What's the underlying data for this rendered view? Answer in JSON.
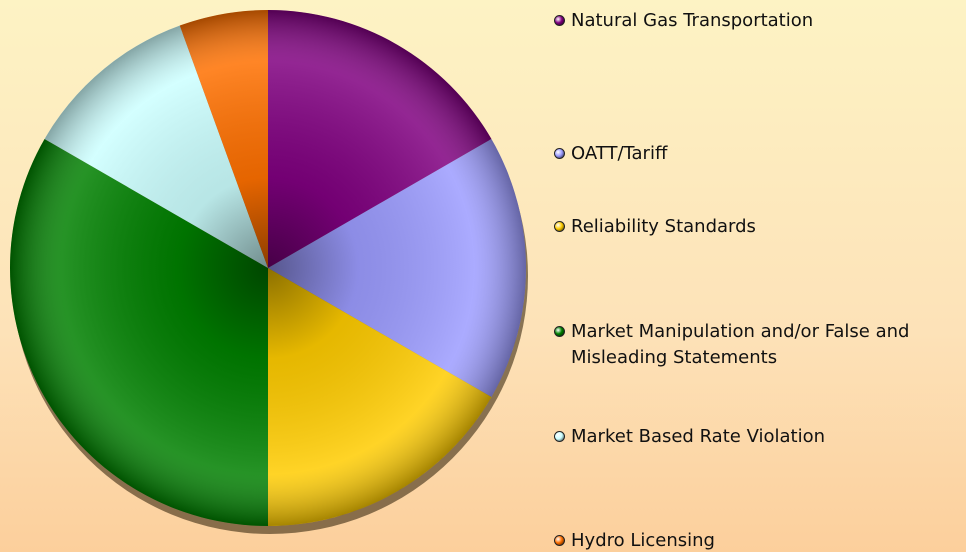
{
  "chart_data": {
    "type": "pie",
    "categories": [
      "Natural Gas Transportation",
      "OATT/Tariff",
      "Reliability Standards",
      "Market Manipulation and/or False and Misleading Statements",
      "Market Based Rate Violation",
      "Hydro Licensing"
    ],
    "values": [
      3,
      3,
      3,
      6,
      2,
      1
    ],
    "colors": [
      "#800080",
      "#9c9cff",
      "#ffcc00",
      "#008000",
      "#ccffff",
      "#ff7000"
    ],
    "legend": "right"
  }
}
